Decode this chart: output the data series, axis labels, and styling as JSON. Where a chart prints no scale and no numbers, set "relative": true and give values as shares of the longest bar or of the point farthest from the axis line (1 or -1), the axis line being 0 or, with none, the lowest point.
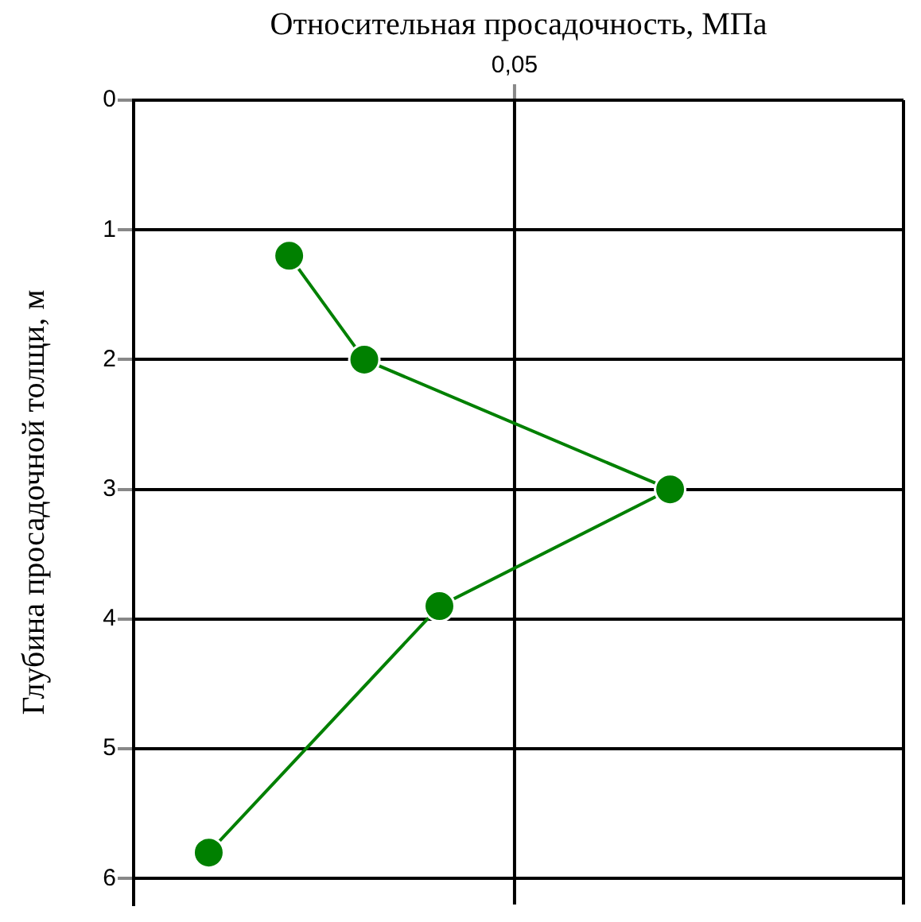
{
  "chart_data": {
    "type": "line",
    "orientation": "horizontal",
    "relative": true,
    "xlabel": "Относительная просадочность, МПа",
    "ylabel": "Глубина просадочной толщи, м",
    "x": [
      1.2,
      2,
      3,
      3.9,
      5.8
    ],
    "values": [
      0.29,
      0.43,
      1,
      0.57,
      0.14
    ],
    "color": "#008000",
    "ylim": [
      6.2,
      0
    ],
    "yticks": [
      0,
      1,
      2,
      3,
      4,
      5,
      6
    ],
    "ref_lines": [
      {
        "axis": "x",
        "value": 0.71,
        "color": "#000000"
      }
    ],
    "annotations": [
      "0,05"
    ],
    "grid": "y",
    "marker": "circle"
  }
}
